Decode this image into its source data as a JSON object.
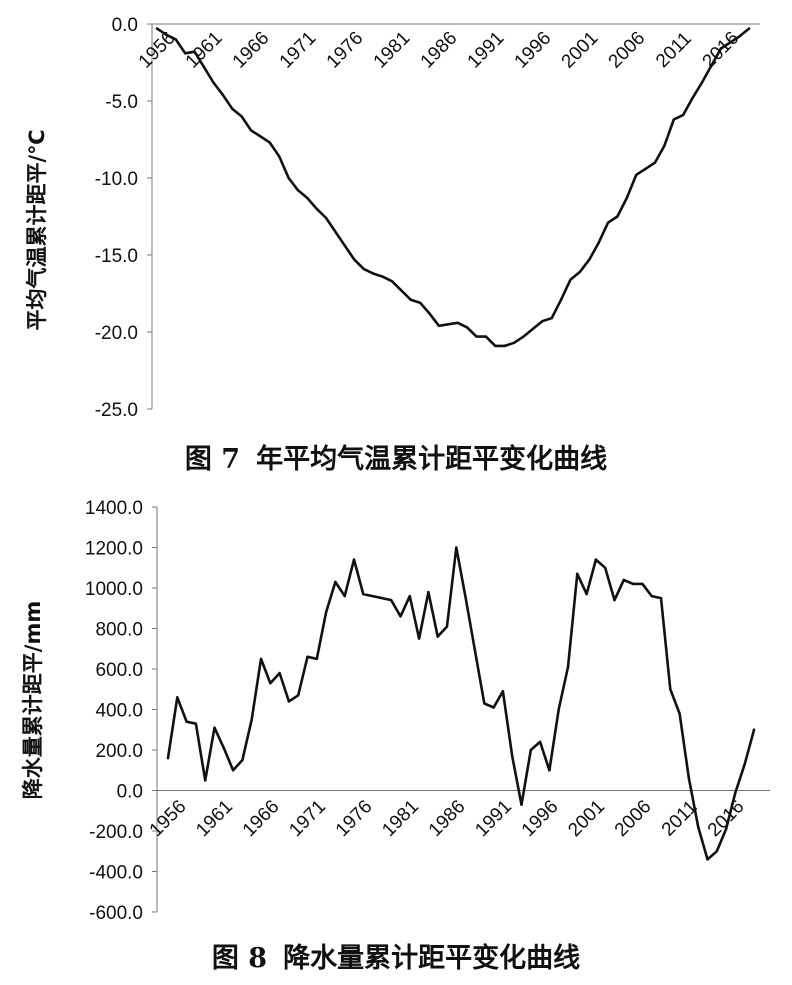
{
  "chart_data": [
    {
      "type": "line",
      "caption_number": "图 7",
      "caption_text": "年平均气温累计距平变化曲线",
      "xlabel": "",
      "ylabel": "平均气温累计距平/℃",
      "ylim": [
        -25.0,
        0.0
      ],
      "yticks": [
        "0.0",
        "-5.0",
        "-10.0",
        "-15.0",
        "-20.0",
        "-25.0"
      ],
      "xticks": [
        "1956",
        "1961",
        "1966",
        "1971",
        "1976",
        "1981",
        "1986",
        "1991",
        "1996",
        "2001",
        "2006",
        "2011",
        "2016"
      ],
      "grid": false,
      "x": [
        1956,
        1957,
        1958,
        1959,
        1960,
        1961,
        1962,
        1963,
        1964,
        1965,
        1966,
        1967,
        1968,
        1969,
        1970,
        1971,
        1972,
        1973,
        1974,
        1975,
        1976,
        1977,
        1978,
        1979,
        1980,
        1981,
        1982,
        1983,
        1984,
        1985,
        1986,
        1987,
        1988,
        1989,
        1990,
        1991,
        1992,
        1993,
        1994,
        1995,
        1996,
        1997,
        1998,
        1999,
        2000,
        2001,
        2002,
        2003,
        2004,
        2005,
        2006,
        2007,
        2008,
        2009,
        2010,
        2011,
        2012,
        2013,
        2014,
        2015,
        2016,
        2017,
        2018,
        2019
      ],
      "series": [
        {
          "values": [
            -0.3,
            -0.7,
            -1.0,
            -1.9,
            -1.8,
            -2.8,
            -3.8,
            -4.6,
            -5.5,
            -6.0,
            -6.9,
            -7.3,
            -7.7,
            -8.6,
            -10.0,
            -10.8,
            -11.3,
            -12.0,
            -12.6,
            -13.5,
            -14.4,
            -15.3,
            -15.9,
            -16.2,
            -16.4,
            -16.7,
            -17.3,
            -17.9,
            -18.1,
            -18.8,
            -19.6,
            -19.5,
            -19.4,
            -19.7,
            -20.3,
            -20.3,
            -20.9,
            -20.9,
            -20.7,
            -20.3,
            -19.8,
            -19.3,
            -19.1,
            -17.9,
            -16.6,
            -16.1,
            -15.3,
            -14.2,
            -12.9,
            -12.5,
            -11.3,
            -9.8,
            -9.4,
            -9.0,
            -7.9,
            -6.2,
            -5.9,
            -4.8,
            -3.8,
            -2.7,
            -1.6,
            -1.2,
            -0.8,
            -0.3
          ]
        }
      ]
    },
    {
      "type": "line",
      "caption_number": "图 8",
      "caption_text": "降水量累计距平变化曲线",
      "xlabel": "",
      "ylabel": "降水量累计距平/mm",
      "ylim": [
        -600.0,
        1400.0
      ],
      "yticks": [
        "1400.0",
        "1200.0",
        "1000.0",
        "800.0",
        "600.0",
        "400.0",
        "200.0",
        "0.0",
        "-200.0",
        "-400.0",
        "-600.0"
      ],
      "xticks": [
        "1956",
        "1961",
        "1966",
        "1971",
        "1976",
        "1981",
        "1986",
        "1991",
        "1996",
        "2001",
        "2006",
        "2011",
        "2016"
      ],
      "grid": false,
      "x": [
        1956,
        1957,
        1958,
        1959,
        1960,
        1961,
        1962,
        1963,
        1964,
        1965,
        1966,
        1967,
        1968,
        1969,
        1970,
        1971,
        1972,
        1973,
        1974,
        1975,
        1976,
        1977,
        1978,
        1979,
        1980,
        1981,
        1982,
        1983,
        1984,
        1985,
        1986,
        1987,
        1988,
        1989,
        1990,
        1991,
        1992,
        1993,
        1994,
        1995,
        1996,
        1997,
        1998,
        1999,
        2000,
        2001,
        2002,
        2003,
        2004,
        2005,
        2006,
        2007,
        2008,
        2009,
        2010,
        2011,
        2012,
        2013,
        2014,
        2015,
        2016,
        2017,
        2018,
        2019
      ],
      "series": [
        {
          "values": [
            160,
            460,
            340,
            330,
            50,
            310,
            210,
            100,
            150,
            350,
            650,
            530,
            580,
            440,
            470,
            660,
            650,
            880,
            1030,
            960,
            1140,
            970,
            960,
            950,
            940,
            860,
            960,
            750,
            980,
            760,
            810,
            1200,
            950,
            690,
            430,
            410,
            490,
            170,
            -70,
            200,
            240,
            100,
            400,
            610,
            1070,
            970,
            1140,
            1100,
            940,
            1040,
            1020,
            1020,
            960,
            950,
            500,
            380,
            60,
            -180,
            -340,
            -300,
            -190,
            -10,
            130,
            300
          ]
        }
      ]
    }
  ]
}
